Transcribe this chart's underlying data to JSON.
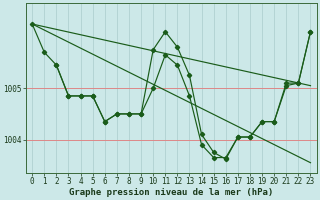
{
  "background_color": "#cce8e8",
  "grid_color_v": "#aacccc",
  "grid_color_h": "#dd8888",
  "line_color": "#1a5c1a",
  "marker_color": "#1a5c1a",
  "xlabel": "Graphe pression niveau de la mer (hPa)",
  "xlabel_fontsize": 6.5,
  "tick_fontsize": 5.5,
  "ylim": [
    1003.35,
    1006.65
  ],
  "xlim": [
    -0.5,
    23.5
  ],
  "yticks": [
    1004,
    1005
  ],
  "xticks": [
    0,
    1,
    2,
    3,
    4,
    5,
    6,
    7,
    8,
    9,
    10,
    11,
    12,
    13,
    14,
    15,
    16,
    17,
    18,
    19,
    20,
    21,
    22,
    23
  ],
  "trend1_x": [
    0,
    23
  ],
  "trend1_y": [
    1006.25,
    1003.55
  ],
  "trend2_x": [
    0,
    23
  ],
  "trend2_y": [
    1006.25,
    1005.05
  ],
  "series_main_x": [
    0,
    1,
    2,
    3,
    4,
    5,
    6,
    7,
    8,
    9,
    10,
    11,
    12,
    13,
    14,
    15,
    16,
    17,
    18,
    19,
    20,
    21,
    22,
    23
  ],
  "series_main_y": [
    1006.25,
    1005.7,
    1005.45,
    1004.85,
    1004.85,
    1004.85,
    1004.35,
    1004.5,
    1004.5,
    1004.5,
    1005.75,
    1006.1,
    1005.8,
    1005.25,
    1004.1,
    1003.75,
    1003.62,
    1004.05,
    1004.05,
    1004.35,
    1004.35,
    1005.1,
    1005.1,
    1006.1
  ],
  "series_sub_x": [
    2,
    3,
    4,
    5,
    6,
    7,
    8,
    9,
    10,
    11,
    12,
    13,
    14,
    15,
    16,
    17,
    18,
    19,
    20,
    21,
    22,
    23
  ],
  "series_sub_y": [
    1005.45,
    1004.85,
    1004.85,
    1004.85,
    1004.35,
    1004.5,
    1004.5,
    1004.5,
    1005.0,
    1005.65,
    1005.45,
    1004.85,
    1003.9,
    1003.65,
    1003.65,
    1004.05,
    1004.05,
    1004.35,
    1004.35,
    1005.05,
    1005.1,
    1006.1
  ]
}
